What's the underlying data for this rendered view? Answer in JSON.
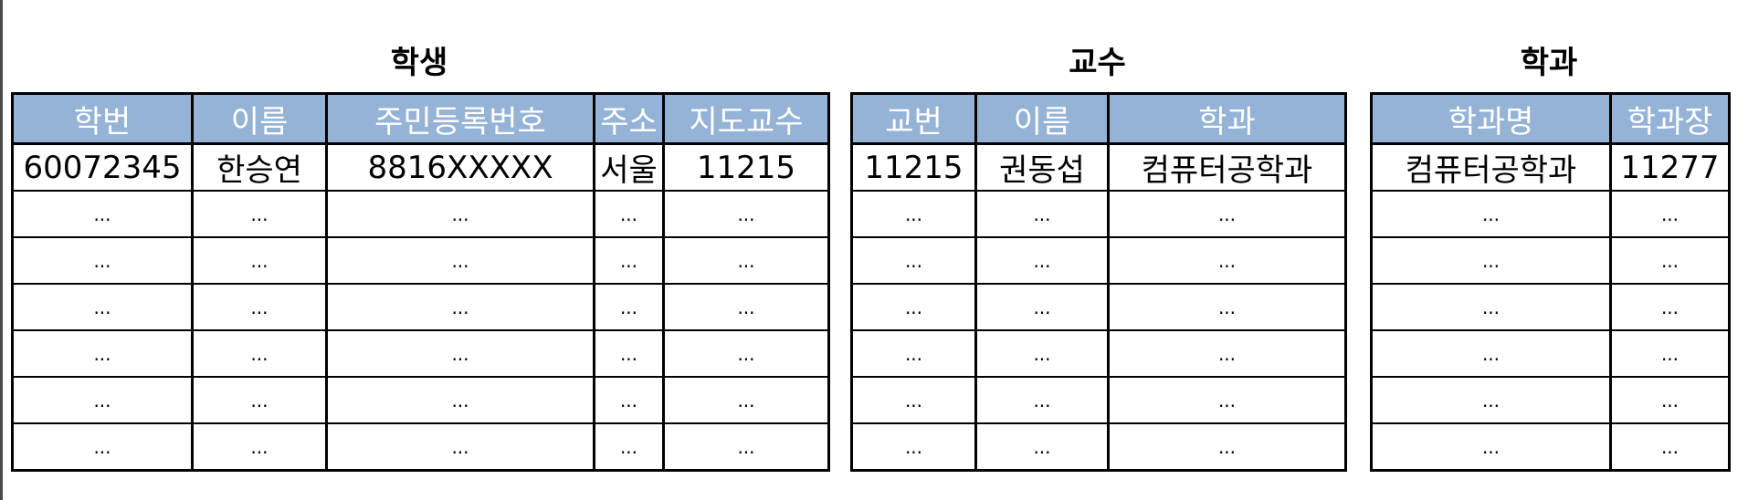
{
  "student": {
    "title": "학생",
    "columns": [
      "학번",
      "이름",
      "주민등록번호",
      "주소",
      "지도교수"
    ],
    "rows": [
      [
        "60072345",
        "한승연",
        "8816XXXXX",
        "서울",
        "11215"
      ],
      [
        "...",
        "...",
        "...",
        "...",
        "..."
      ],
      [
        "...",
        "...",
        "...",
        "...",
        "..."
      ],
      [
        "...",
        "...",
        "...",
        "...",
        "..."
      ],
      [
        "...",
        "...",
        "...",
        "...",
        "..."
      ],
      [
        "...",
        "...",
        "...",
        "...",
        "..."
      ],
      [
        "...",
        "...",
        "...",
        "...",
        "..."
      ]
    ]
  },
  "professor": {
    "title": "교수",
    "columns": [
      "교번",
      "이름",
      "학과"
    ],
    "rows": [
      [
        "11215",
        "권동섭",
        "컴퓨터공학과"
      ],
      [
        "...",
        "...",
        "..."
      ],
      [
        "...",
        "...",
        "..."
      ],
      [
        "...",
        "...",
        "..."
      ],
      [
        "...",
        "...",
        "..."
      ],
      [
        "...",
        "...",
        "..."
      ],
      [
        "...",
        "...",
        "..."
      ]
    ]
  },
  "department": {
    "title": "학과",
    "columns": [
      "학과명",
      "학과장"
    ],
    "rows": [
      [
        "컴퓨터공학과",
        "11277"
      ],
      [
        "...",
        "..."
      ],
      [
        "...",
        "..."
      ],
      [
        "...",
        "..."
      ],
      [
        "...",
        "..."
      ],
      [
        "...",
        "..."
      ],
      [
        "...",
        "..."
      ]
    ]
  },
  "colors": {
    "header_fill": "#95b3d7",
    "header_text": "#ffffff",
    "border": "#000000"
  }
}
